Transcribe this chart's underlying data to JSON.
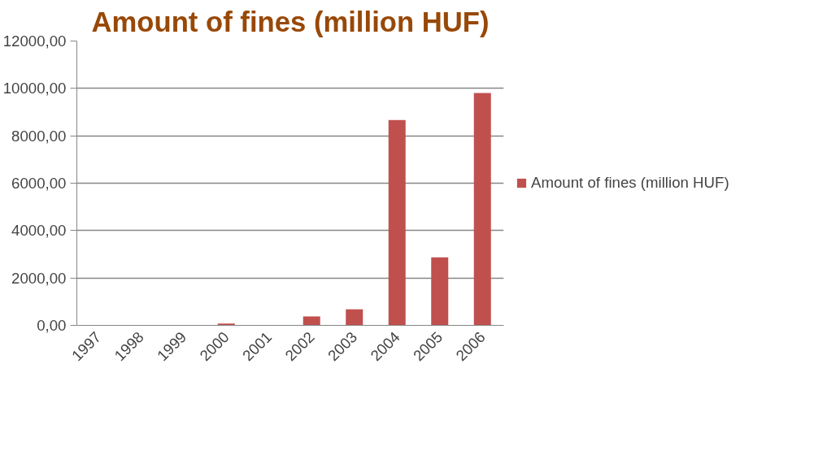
{
  "chart_data": {
    "type": "bar",
    "title": "Amount of fines (million HUF)",
    "categories": [
      "1997",
      "1998",
      "1999",
      "2000",
      "2001",
      "2002",
      "2003",
      "2004",
      "2005",
      "2006"
    ],
    "series": [
      {
        "name": "Amount of fines (million HUF)",
        "color": "#c0504d",
        "values": [
          0,
          0,
          0,
          80,
          0,
          380,
          680,
          8670,
          2870,
          9810
        ]
      }
    ],
    "ylim": [
      0,
      12000
    ],
    "yticks": [
      {
        "value": 0,
        "label": "0,00"
      },
      {
        "value": 2000,
        "label": "2000,00"
      },
      {
        "value": 4000,
        "label": "4000,00"
      },
      {
        "value": 6000,
        "label": "6000,00"
      },
      {
        "value": 8000,
        "label": "8000,00"
      },
      {
        "value": 10000,
        "label": "10000,00"
      },
      {
        "value": 12000,
        "label": "12000,00"
      }
    ],
    "grid": "y",
    "legend": "right"
  }
}
